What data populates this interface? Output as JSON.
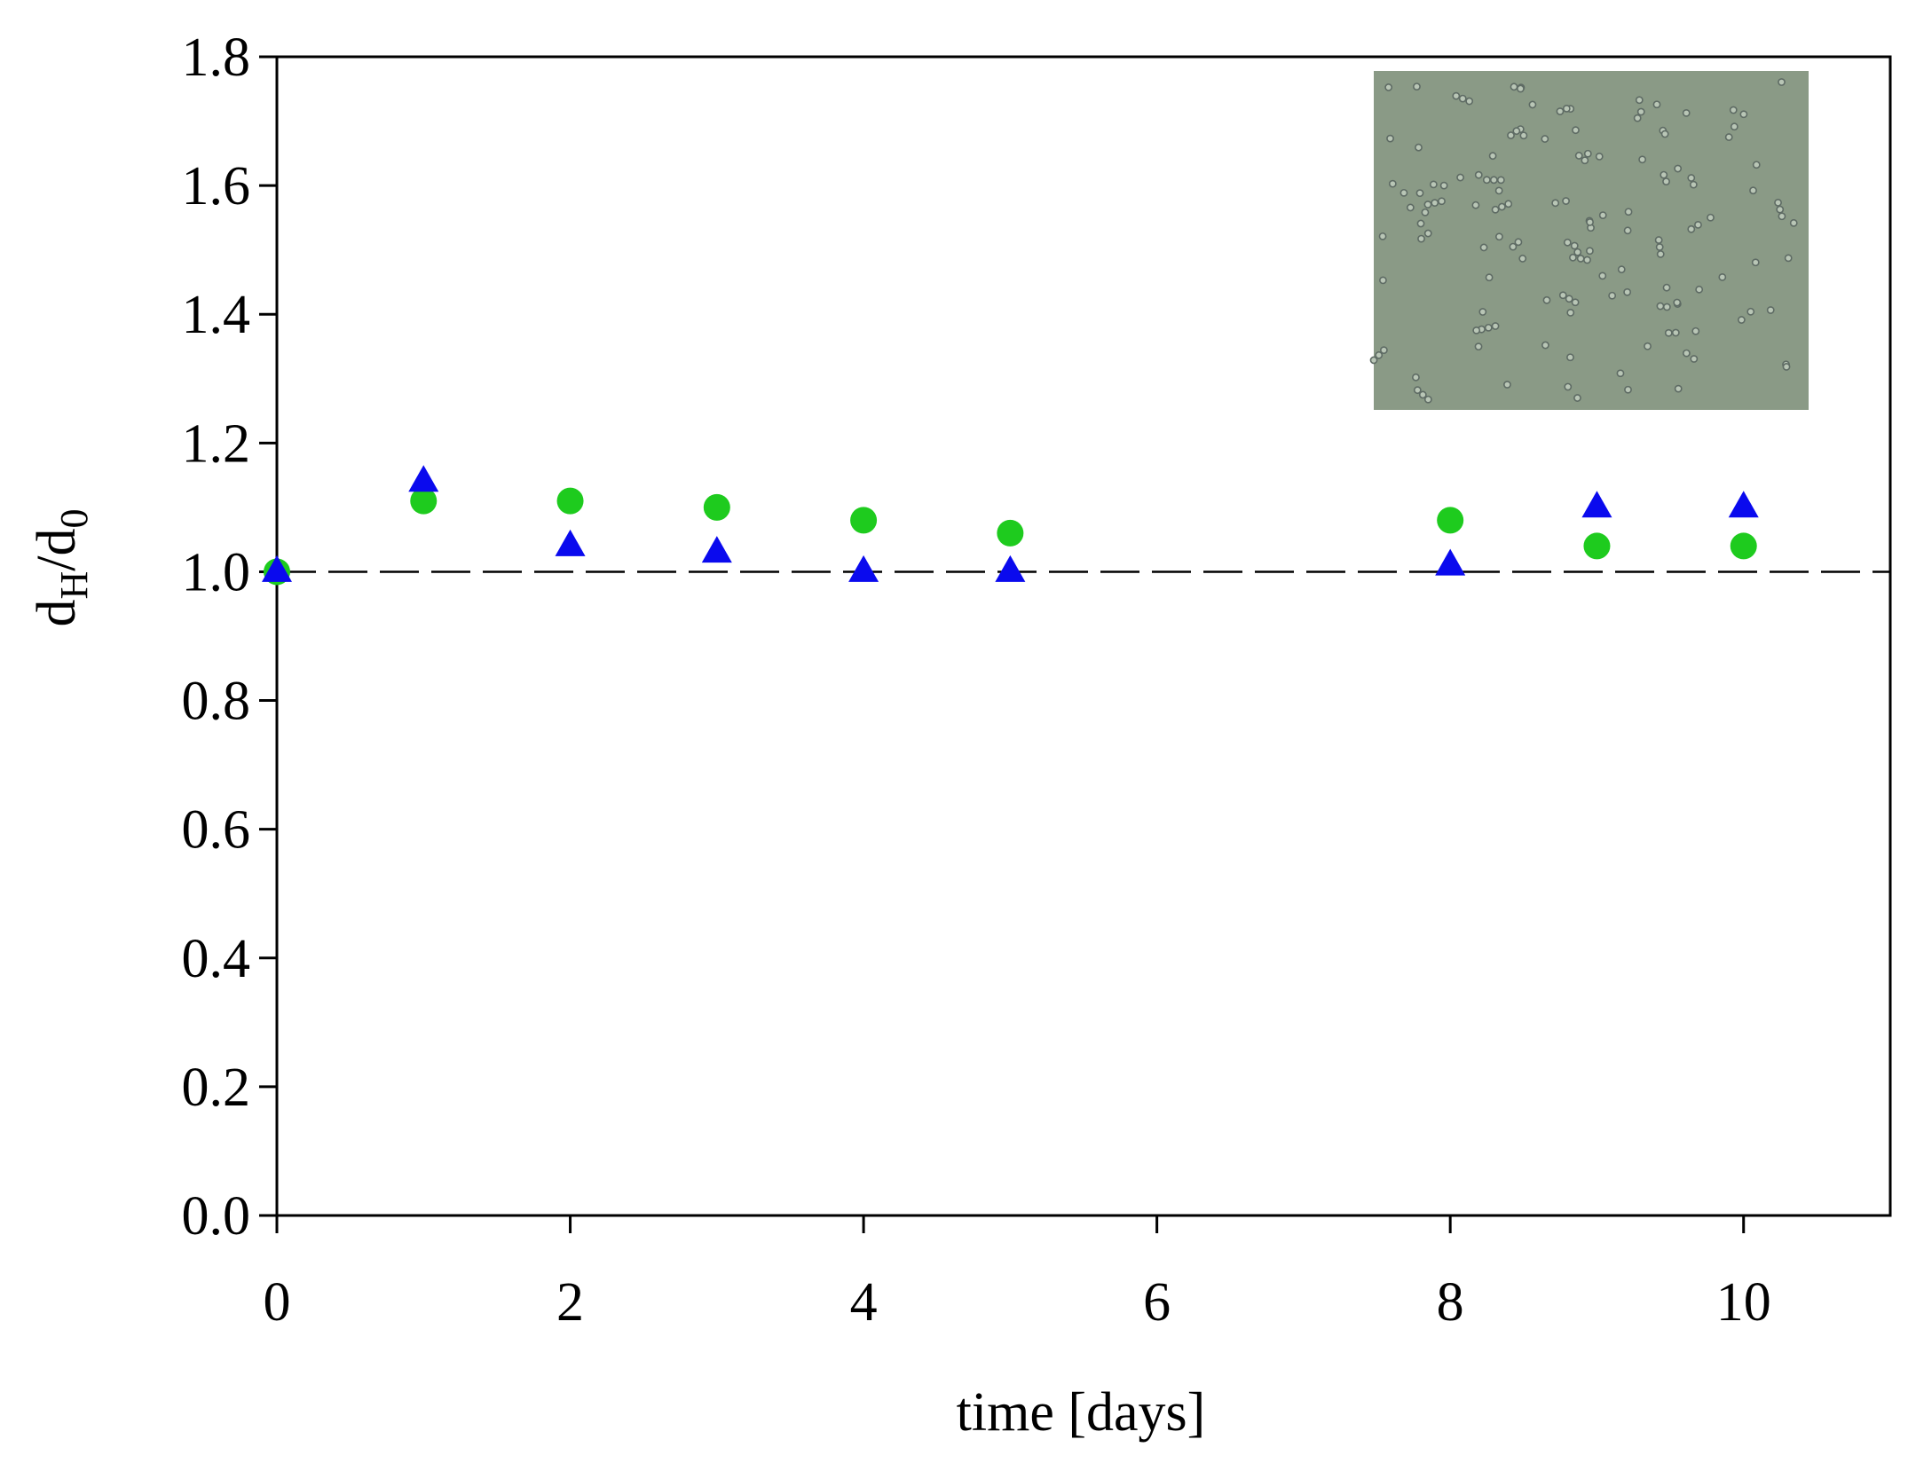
{
  "chart_data": {
    "type": "scatter",
    "title": "",
    "xlabel": "time [days]",
    "ylabel": {
      "main": "d",
      "sub1": "H",
      "mid": "/d",
      "sub2": "0"
    },
    "xlim": [
      0,
      11
    ],
    "ylim": [
      0,
      1.8
    ],
    "x_ticks": [
      0,
      2,
      4,
      6,
      8,
      10
    ],
    "x_tick_labels": [
      "0",
      "2",
      "4",
      "6",
      "8",
      "10"
    ],
    "y_ticks": [
      0.0,
      0.2,
      0.4,
      0.6,
      0.8,
      1.0,
      1.2,
      1.4,
      1.6,
      1.8
    ],
    "y_tick_labels": [
      "0.0",
      "0.2",
      "0.4",
      "0.6",
      "0.8",
      "1.0",
      "1.2",
      "1.4",
      "1.6",
      "1.8"
    ],
    "grid": false,
    "legend": "none",
    "reference_line": {
      "y": 1.0,
      "style": "dashed"
    },
    "series": [
      {
        "marker": "circle",
        "color": "#1ecb1e",
        "x": [
          0,
          1,
          2,
          3,
          4,
          5,
          8,
          9,
          10
        ],
        "y": [
          1.0,
          1.11,
          1.11,
          1.1,
          1.08,
          1.06,
          1.08,
          1.04,
          1.04
        ]
      },
      {
        "marker": "triangle",
        "color": "#0a0aee",
        "x": [
          0,
          1,
          2,
          3,
          4,
          5,
          8,
          9,
          10
        ],
        "y": [
          1.0,
          1.14,
          1.04,
          1.03,
          1.0,
          1.0,
          1.01,
          1.1,
          1.1
        ]
      }
    ],
    "inset": {
      "kind": "micrograph",
      "background": "#8a9a86",
      "particle_color": "#5e6b64"
    }
  }
}
